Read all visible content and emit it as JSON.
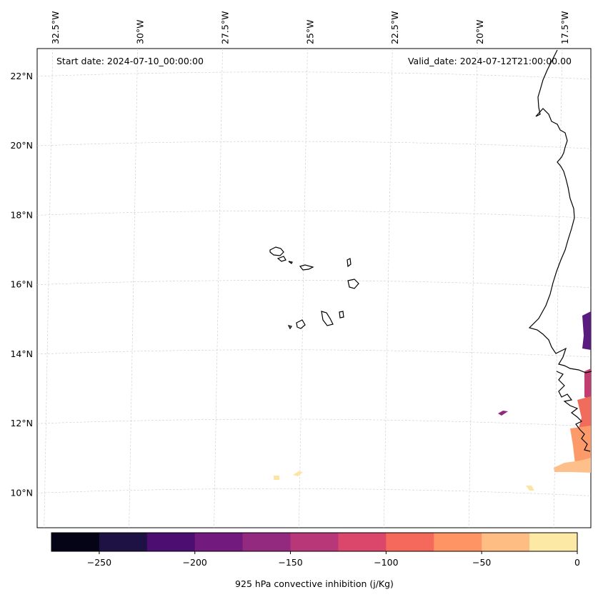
{
  "map": {
    "start_date_text": "Start date: 2024-07-10_00:00:00",
    "valid_date_text": "Valid_date: 2024-07-12T21:00:00.00",
    "lon_labels": [
      {
        "text": "32.5°W",
        "lon": -32.5
      },
      {
        "text": "30°W",
        "lon": -30
      },
      {
        "text": "27.5°W",
        "lon": -27.5
      },
      {
        "text": "25°W",
        "lon": -25
      },
      {
        "text": "22.5°W",
        "lon": -22.5
      },
      {
        "text": "20°W",
        "lon": -20
      },
      {
        "text": "17.5°W",
        "lon": -17.5
      }
    ],
    "lat_labels": [
      {
        "text": "22°N",
        "lat": 22
      },
      {
        "text": "20°N",
        "lat": 20
      },
      {
        "text": "18°N",
        "lat": 18
      },
      {
        "text": "16°N",
        "lat": 16
      },
      {
        "text": "14°N",
        "lat": 14
      },
      {
        "text": "12°N",
        "lat": 12
      },
      {
        "text": "10°N",
        "lat": 10
      }
    ],
    "extent": {
      "lon_min": -33.0,
      "lon_max": -16.7,
      "lat_min": 9.0,
      "lat_max": 22.8
    },
    "gridlines": true,
    "field_colors": {
      "dark_purple": "#5a1b7e",
      "purple": "#8f2a80",
      "pink": "#c33d71",
      "salmon": "#f06d5c",
      "orange": "#fd9a6a",
      "peach": "#fec08a",
      "light_yellow": "#fde4a2"
    }
  },
  "colorbar": {
    "label": "925 hPa convective inhibition (j/Kg)",
    "ticks": [
      "−250",
      "−200",
      "−150",
      "−100",
      "−50",
      "0"
    ],
    "range": [
      -275,
      0
    ],
    "colors": [
      "#050416",
      "#1e1244",
      "#4c0f71",
      "#731a7e",
      "#942a7f",
      "#b73779",
      "#db476a",
      "#f5695c",
      "#fe9364",
      "#febe83",
      "#fde9a6"
    ]
  }
}
